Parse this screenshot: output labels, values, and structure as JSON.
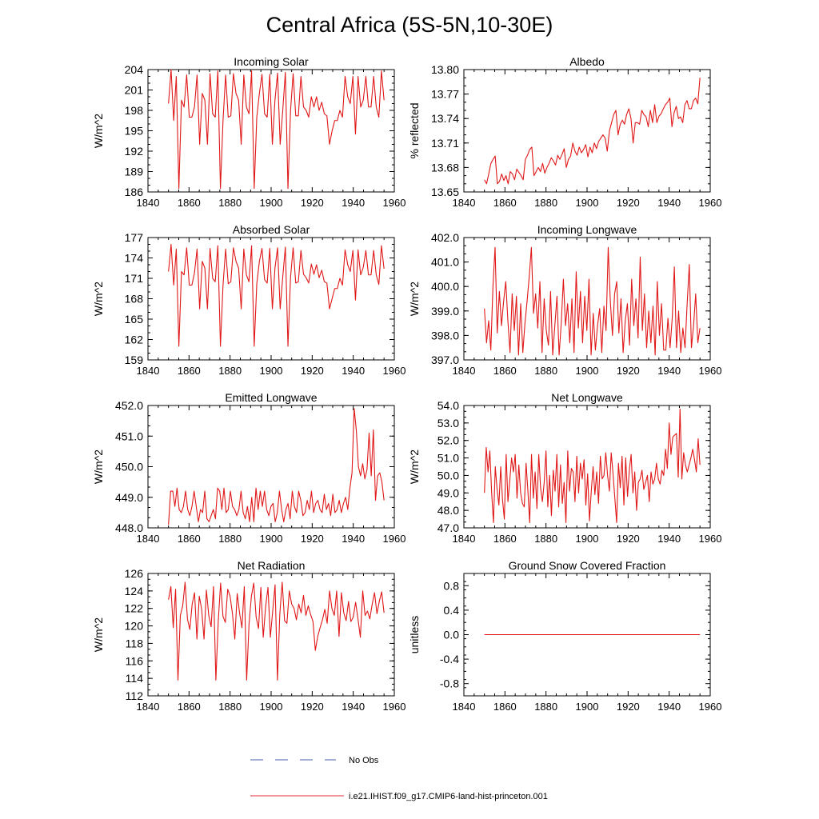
{
  "title": "Central Africa (5S-5N,10-30E)",
  "legend": {
    "items": [
      {
        "label": "No Obs",
        "color": "#4a5fb0",
        "dash": true
      },
      {
        "label": "i.e21.IHIST.f09_g17.CMIP6-land-hist-princeton.001",
        "color": "#e0303c",
        "dash": false
      }
    ]
  },
  "series_color": "#e01818",
  "chart_data": [
    {
      "type": "line",
      "title": "Incoming Solar",
      "ylabel": "W/m^2",
      "xlim": [
        1840,
        1960
      ],
      "xticks": [
        "1840",
        "1860",
        "1880",
        "1900",
        "1920",
        "1940",
        "1960"
      ],
      "ylim": [
        186,
        204
      ],
      "yticks": [
        "186",
        "189",
        "192",
        "195",
        "198",
        "201",
        "204"
      ],
      "x_start": 1850,
      "values": [
        199,
        204,
        196.5,
        203,
        186.5,
        199.5,
        198.5,
        203.2,
        197,
        197,
        198.5,
        203.2,
        193,
        200.5,
        199.5,
        193,
        203.4,
        197.5,
        197,
        203.8,
        186.5,
        196.5,
        203.2,
        197,
        197.2,
        203.4,
        200.5,
        199.5,
        193,
        203.2,
        198.5,
        197.5,
        203.8,
        186.5,
        197,
        200.5,
        203.3,
        197.5,
        197,
        203.3,
        193,
        199.5,
        203.5,
        193,
        198,
        203.6,
        186.5,
        198,
        203.4,
        197.2,
        197.2,
        203,
        198.5,
        198,
        197,
        200,
        198.5,
        200,
        198,
        199.2,
        197.5,
        197.2,
        193,
        195,
        196.5,
        196.5,
        198,
        197,
        203,
        200,
        199,
        203,
        194.5,
        203,
        198.5,
        199.5,
        203,
        198.5,
        198.5,
        203,
        198.5,
        197,
        203.8,
        199.5
      ]
    },
    {
      "type": "line",
      "title": "Albedo",
      "ylabel": "% reflected",
      "xlim": [
        1840,
        1960
      ],
      "xticks": [
        "1840",
        "1860",
        "1880",
        "1900",
        "1920",
        "1940",
        "1960"
      ],
      "ylim": [
        13.65,
        13.8
      ],
      "yticks": [
        "13.65",
        "13.68",
        "13.71",
        "13.74",
        "13.77",
        "13.80"
      ],
      "x_start": 1850,
      "values": [
        13.665,
        13.66,
        13.672,
        13.685,
        13.69,
        13.694,
        13.66,
        13.663,
        13.672,
        13.664,
        13.67,
        13.66,
        13.675,
        13.672,
        13.665,
        13.678,
        13.674,
        13.67,
        13.665,
        13.69,
        13.695,
        13.702,
        13.705,
        13.67,
        13.675,
        13.68,
        13.675,
        13.685,
        13.673,
        13.68,
        13.685,
        13.692,
        13.688,
        13.683,
        13.695,
        13.69,
        13.696,
        13.703,
        13.68,
        13.69,
        13.694,
        13.71,
        13.7,
        13.695,
        13.705,
        13.698,
        13.702,
        13.708,
        13.693,
        13.705,
        13.698,
        13.71,
        13.703,
        13.712,
        13.716,
        13.72,
        13.716,
        13.7,
        13.725,
        13.735,
        13.745,
        13.75,
        13.72,
        13.733,
        13.738,
        13.733,
        13.745,
        13.752,
        13.74,
        13.71,
        13.735,
        13.735,
        13.733,
        13.75,
        13.745,
        13.742,
        13.73,
        13.75,
        13.735,
        13.757,
        13.735,
        13.743,
        13.746,
        13.752,
        13.757,
        13.76,
        13.765,
        13.73,
        13.747,
        13.755,
        13.74,
        13.742,
        13.735,
        13.757,
        13.762,
        13.752,
        13.752,
        13.762,
        13.765,
        13.758,
        13.79
      ]
    },
    {
      "type": "line",
      "title": "Absorbed Solar",
      "ylabel": "W/m^2",
      "xlim": [
        1840,
        1960
      ],
      "xticks": [
        "1840",
        "1860",
        "1880",
        "1900",
        "1920",
        "1940",
        "1960"
      ],
      "ylim": [
        159,
        177
      ],
      "yticks": [
        "159",
        "162",
        "165",
        "168",
        "171",
        "174",
        "177"
      ],
      "x_start": 1850,
      "values": [
        172,
        176,
        170,
        175.3,
        161,
        172,
        171.5,
        175.5,
        170,
        170,
        171.8,
        175.3,
        166.5,
        173.5,
        172.5,
        166.5,
        175.4,
        171,
        170.5,
        175.8,
        161,
        170,
        175.3,
        170.2,
        170.5,
        175.5,
        173.5,
        172.5,
        166.5,
        175.3,
        171.5,
        170.5,
        175.8,
        161,
        170.2,
        173.5,
        175.4,
        170.8,
        170.3,
        175.4,
        166.5,
        172.5,
        175.5,
        166.5,
        171.2,
        175.6,
        161,
        171.2,
        175.5,
        170.3,
        170.5,
        175.1,
        171.6,
        171.1,
        170.3,
        173.1,
        171.6,
        173,
        171.1,
        172.2,
        170.5,
        170.3,
        166.5,
        168,
        169.5,
        169.5,
        171,
        170,
        175.2,
        173,
        172,
        175.1,
        167.8,
        175.2,
        171.5,
        172.6,
        175.1,
        171.5,
        171.5,
        175.1,
        171.5,
        170.1,
        175.8,
        172.4
      ]
    },
    {
      "type": "line",
      "title": "Incoming Longwave",
      "ylabel": "W/m^2",
      "xlim": [
        1840,
        1960
      ],
      "xticks": [
        "1840",
        "1860",
        "1880",
        "1900",
        "1920",
        "1940",
        "1960"
      ],
      "ylim": [
        397.0,
        402.0
      ],
      "yticks": [
        "397.0",
        "398.0",
        "399.0",
        "400.0",
        "401.0",
        "402.0"
      ],
      "x_start": 1850,
      "values": [
        399.1,
        397.7,
        398.6,
        397.4,
        400,
        401.6,
        398.1,
        399.8,
        398.4,
        399.4,
        400.2,
        398.6,
        397.3,
        399.7,
        398.2,
        399.6,
        397.2,
        399.3,
        397.3,
        398.5,
        399.4,
        400.4,
        401.6,
        398.9,
        399.7,
        398.3,
        400.2,
        397.3,
        399.5,
        398.2,
        397.6,
        399.8,
        397.2,
        398.4,
        399.6,
        397.2,
        398.5,
        400.3,
        398.4,
        399.3,
        397.7,
        399.5,
        397.3,
        400.6,
        398.3,
        399.8,
        397.7,
        399.6,
        398.2,
        400.3,
        397.2,
        398.9,
        397.4,
        398.4,
        399.1,
        397.3,
        399.2,
        398.2,
        401.6,
        399.4,
        398,
        399.7,
        400.2,
        398.1,
        399.5,
        397.3,
        398.6,
        399.3,
        397.6,
        400.3,
        398.4,
        399.5,
        397.9,
        401.2,
        398.2,
        399.7,
        397.5,
        399,
        397.7,
        399.2,
        397.2,
        400.2,
        398,
        399.3,
        397.4,
        397.4,
        398.7,
        397.5,
        398.7,
        400.8,
        397.5,
        399,
        397.3,
        398.3,
        397.5,
        399.3,
        400.9,
        397.5,
        398.4,
        399.7,
        397.7,
        398.3
      ]
    },
    {
      "type": "line",
      "title": "Emitted Longwave",
      "ylabel": "W/m^2",
      "xlim": [
        1840,
        1960
      ],
      "xticks": [
        "1840",
        "1860",
        "1880",
        "1900",
        "1920",
        "1940",
        "1960"
      ],
      "ylim": [
        448.0,
        452.0
      ],
      "yticks": [
        "448.0",
        "449.0",
        "450.0",
        "451.0",
        "452.0"
      ],
      "x_start": 1850,
      "values": [
        448.1,
        449.2,
        449.2,
        448.7,
        449.3,
        448.6,
        448.5,
        448.7,
        449.2,
        448.6,
        448.4,
        448.7,
        449.2,
        448.7,
        448.2,
        448.6,
        448.5,
        449.2,
        448.3,
        448.2,
        448.4,
        448.6,
        448.3,
        449.3,
        449.2,
        448.6,
        449.3,
        448.5,
        448.6,
        449.2,
        448.7,
        448.6,
        448.4,
        448.6,
        449.2,
        448.5,
        448.3,
        448.7,
        448.2,
        449,
        448.2,
        449.3,
        448.6,
        449.2,
        448.7,
        449.2,
        448.6,
        448.4,
        448.7,
        448.8,
        448.2,
        448.5,
        449.2,
        448.6,
        448.2,
        448.6,
        448.8,
        448.3,
        449.2,
        448.7,
        448.5,
        449.2,
        448.9,
        448.4,
        448.5,
        448.9,
        448.6,
        449.2,
        448.5,
        448.8,
        448.9,
        448.6,
        448.5,
        449.1,
        448.6,
        448.8,
        448.4,
        449.1,
        448.5,
        448.6,
        448.9,
        448.5,
        448.8,
        449.0,
        448.6,
        449.3,
        449.8,
        451.9,
        451.2,
        450.0,
        449.7,
        450.1,
        449.6,
        449.9,
        451.1,
        449.7,
        451.2,
        448.9,
        449.7,
        449.8,
        449.5,
        448.9
      ]
    },
    {
      "type": "line",
      "title": "Net Longwave",
      "ylabel": "W/m^2",
      "xlim": [
        1840,
        1960
      ],
      "xticks": [
        "1840",
        "1860",
        "1880",
        "1900",
        "1920",
        "1940",
        "1960"
      ],
      "ylim": [
        47.0,
        54.0
      ],
      "yticks": [
        "47.0",
        "48.0",
        "49.0",
        "50.0",
        "51.0",
        "52.0",
        "53.0",
        "54.0"
      ],
      "x_start": 1850,
      "values": [
        49,
        51.6,
        50.2,
        51.4,
        49,
        47.3,
        50.5,
        49.2,
        48.3,
        50.5,
        48.6,
        47.5,
        51.2,
        48.5,
        49.7,
        51,
        50.2,
        51.2,
        48.7,
        50.6,
        49,
        48.4,
        48.2,
        50.7,
        49.1,
        47.3,
        51.2,
        48.7,
        50.2,
        48.1,
        51.2,
        49.3,
        48.5,
        49.6,
        51.4,
        48.2,
        50,
        47.7,
        50.3,
        49.1,
        51.2,
        48.2,
        50.6,
        48.4,
        49.6,
        47.3,
        51.4,
        49.1,
        50.4,
        50.2,
        48.5,
        51.1,
        49,
        50.7,
        49.8,
        50.9,
        48.3,
        50.1,
        47.4,
        49.1,
        50.5,
        48.9,
        50.2,
        48.4,
        51.1,
        49.8,
        50,
        51.3,
        50,
        49.1,
        51.3,
        50.1,
        48.7,
        47.3,
        50.7,
        49.3,
        51.1,
        48.3,
        51,
        48.8,
        50.3,
        51.2,
        49,
        50.2,
        48,
        49.6,
        49.8,
        50.3,
        49.2,
        49.6,
        50,
        48.5,
        50.2,
        49.5,
        49.8,
        50.7,
        49.8,
        49.5,
        50.3,
        50,
        51.5,
        50.4,
        53,
        51.2,
        52.2,
        52.3,
        52.4,
        49.9,
        53.8,
        49.8,
        51.3,
        50.6,
        50.2,
        50.6,
        51,
        51.5,
        50.9,
        50.2,
        52.1,
        50.6
      ]
    },
    {
      "type": "line",
      "title": "Net Radiation",
      "ylabel": "W/m^2",
      "xlim": [
        1840,
        1960
      ],
      "xticks": [
        "1840",
        "1860",
        "1880",
        "1900",
        "1920",
        "1940",
        "1960"
      ],
      "ylim": [
        112,
        126
      ],
      "yticks": [
        "112",
        "114",
        "116",
        "118",
        "120",
        "122",
        "124",
        "126"
      ],
      "x_start": 1850,
      "values": [
        123,
        124.5,
        119.8,
        124.2,
        113.8,
        121.2,
        122.3,
        125,
        120.8,
        119.6,
        122.5,
        123.8,
        118.5,
        123.4,
        121.9,
        118.5,
        124.1,
        121.2,
        119.9,
        124.5,
        113.8,
        120.5,
        124.9,
        121.1,
        120.4,
        124.2,
        123.4,
        121.4,
        118.5,
        123.7,
        121.5,
        119.8,
        124.5,
        113.8,
        120.2,
        123.4,
        124.9,
        121,
        119.7,
        124.4,
        118.7,
        122.2,
        124.4,
        118.7,
        121.7,
        124.7,
        113.8,
        121.4,
        125,
        120.6,
        120.3,
        124,
        122.5,
        122,
        120.7,
        122.5,
        121.5,
        123.5,
        121.2,
        122.3,
        121.3,
        120.5,
        117.2,
        118.8,
        119.8,
        120.7,
        121.9,
        120.3,
        124,
        122,
        121.2,
        124,
        118.8,
        123.8,
        121.5,
        120.6,
        122.8,
        120.5,
        121,
        122.7,
        120.8,
        118.7,
        124,
        121.2,
        121.7,
        120.8,
        122.5,
        123.8,
        121.4,
        122.8,
        123.9,
        121.5
      ]
    },
    {
      "type": "line",
      "title": "Ground Snow Covered Fraction",
      "ylabel": "unitless",
      "xlim": [
        1840,
        1960
      ],
      "xticks": [
        "1840",
        "1860",
        "1880",
        "1900",
        "1920",
        "1940",
        "1960"
      ],
      "ylim": [
        -1.0,
        1.0
      ],
      "yticks": [
        "-0.8",
        "-0.4",
        "0.0",
        "0.4",
        "0.8"
      ],
      "ytick_values": [
        -0.8,
        -0.4,
        0.0,
        0.4,
        0.8
      ],
      "x_start": 1850,
      "x_end": 1955,
      "values": [
        0,
        0
      ]
    }
  ]
}
